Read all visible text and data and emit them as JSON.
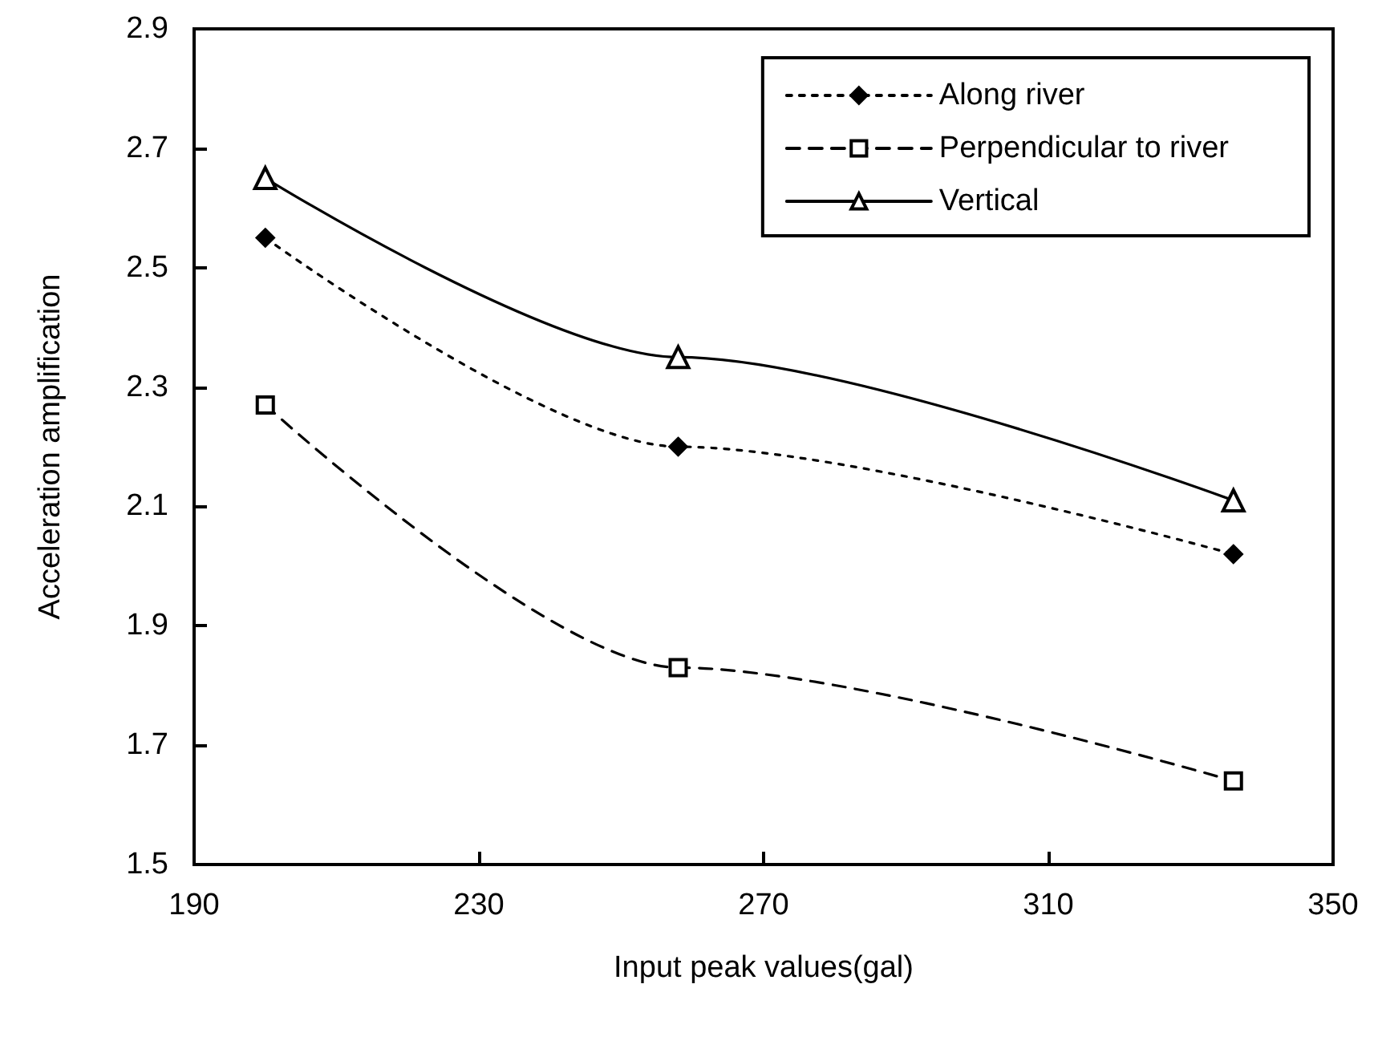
{
  "chart_data": {
    "type": "line",
    "xlabel": "Input peak values(gal)",
    "ylabel": "Acceleration amplification",
    "x": [
      200,
      258,
      336
    ],
    "series": [
      {
        "name": "Along river",
        "color": "#000000",
        "values": [
          2.55,
          2.2,
          2.02
        ],
        "marker": "diamond",
        "line_style": "dotted"
      },
      {
        "name": "Perpendicular to river",
        "color": "#000000",
        "values": [
          2.27,
          1.83,
          1.64
        ],
        "marker": "square",
        "line_style": "dashed"
      },
      {
        "name": "Vertical",
        "color": "#000000",
        "values": [
          2.65,
          2.35,
          2.11
        ],
        "marker": "triangle",
        "line_style": "solid"
      }
    ],
    "xlim": [
      190,
      350
    ],
    "xticks": [
      190,
      230,
      270,
      310,
      350
    ],
    "ylim": [
      1.5,
      2.9
    ],
    "yticks": [
      1.5,
      1.7,
      1.9,
      2.1,
      2.3,
      2.5,
      2.7,
      2.9
    ],
    "grid": false,
    "legend": "top right"
  }
}
